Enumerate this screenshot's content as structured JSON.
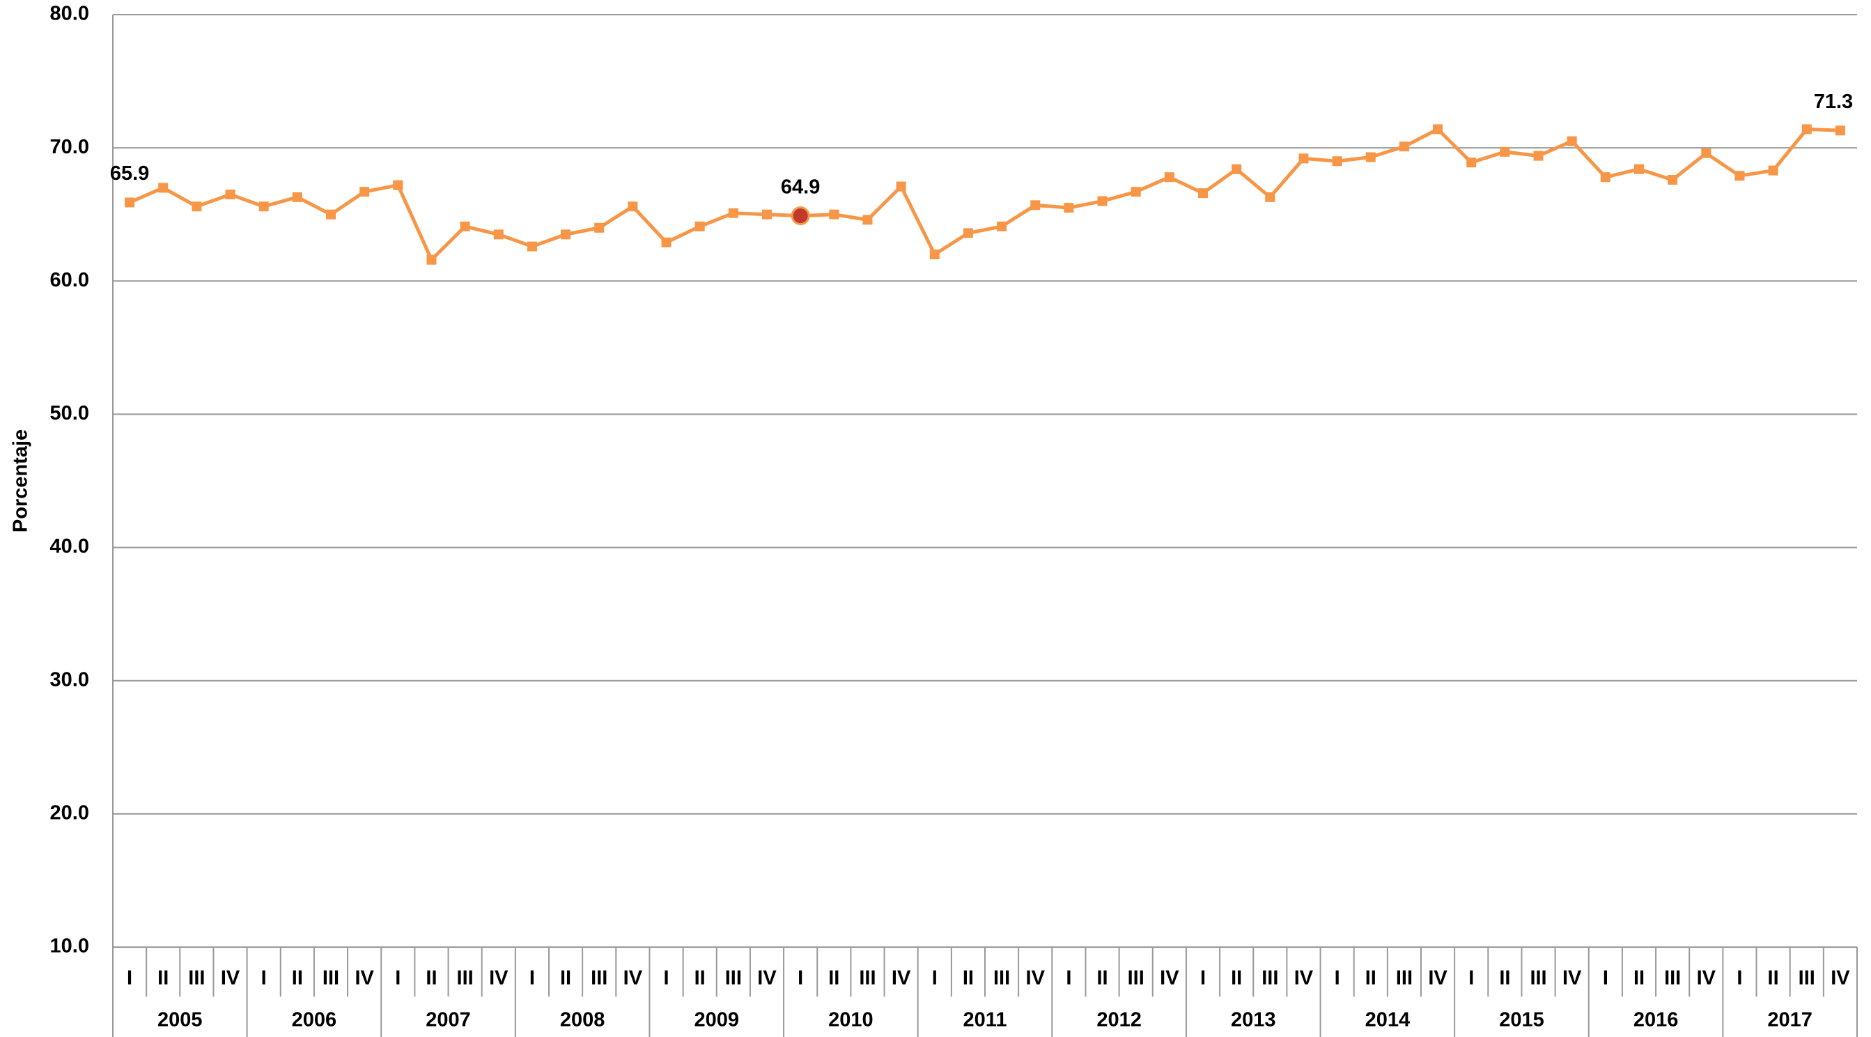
{
  "chart_data": {
    "type": "line",
    "y_label": "Porcentaje",
    "categories": [
      "I",
      "II",
      "III",
      "IV",
      "I",
      "II",
      "III",
      "IV",
      "I",
      "II",
      "III",
      "IV",
      "I",
      "II",
      "III",
      "IV",
      "I",
      "II",
      "III",
      "IV",
      "I",
      "II",
      "III",
      "IV",
      "I",
      "II",
      "III",
      "IV",
      "I",
      "II",
      "III",
      "IV",
      "I",
      "II",
      "III",
      "IV",
      "I",
      "II",
      "III",
      "IV",
      "I",
      "II",
      "III",
      "IV",
      "I",
      "II",
      "III",
      "IV",
      "I",
      "II",
      "III",
      "IV"
    ],
    "years": [
      "2005",
      "2006",
      "2007",
      "2008",
      "2009",
      "2010",
      "2011",
      "2012",
      "2013",
      "2014",
      "2015",
      "2016",
      "2017"
    ],
    "series": [
      {
        "name": "Porcentaje",
        "color": "#f79646",
        "values": [
          65.9,
          67.0,
          65.6,
          66.5,
          65.6,
          66.3,
          65.0,
          66.7,
          67.2,
          61.6,
          64.1,
          63.5,
          62.6,
          63.5,
          64.0,
          65.6,
          62.9,
          64.1,
          65.1,
          65.0,
          64.9,
          65.0,
          64.6,
          67.1,
          62.0,
          63.6,
          64.1,
          65.7,
          65.5,
          66.0,
          66.7,
          67.8,
          66.6,
          68.4,
          66.3,
          69.2,
          69.0,
          69.3,
          70.1,
          71.4,
          68.9,
          69.7,
          69.4,
          70.5,
          67.8,
          68.4,
          67.6,
          69.6,
          67.9,
          68.3,
          71.4,
          71.3
        ],
        "value_labels": [
          "65.9",
          null,
          null,
          null,
          null,
          null,
          null,
          null,
          null,
          null,
          null,
          null,
          null,
          null,
          null,
          null,
          null,
          null,
          null,
          null,
          "64.9",
          null,
          null,
          null,
          null,
          null,
          null,
          null,
          null,
          null,
          null,
          null,
          null,
          null,
          null,
          null,
          null,
          null,
          null,
          null,
          null,
          null,
          null,
          null,
          null,
          null,
          null,
          null,
          null,
          null,
          null,
          "71.3"
        ]
      }
    ],
    "highlight_index": 20,
    "highlight_color": "#c0392b",
    "ylim": [
      10,
      80
    ],
    "yticks": [
      {
        "value": 10,
        "label": "10.0"
      },
      {
        "value": 20,
        "label": "20.0"
      },
      {
        "value": 30,
        "label": "30.0"
      },
      {
        "value": 40,
        "label": "40.0"
      },
      {
        "value": 50,
        "label": "50.0"
      },
      {
        "value": 60,
        "label": "60.0"
      },
      {
        "value": 70,
        "label": "70.0"
      },
      {
        "value": 80,
        "label": "80.0"
      }
    ],
    "grid": true
  }
}
